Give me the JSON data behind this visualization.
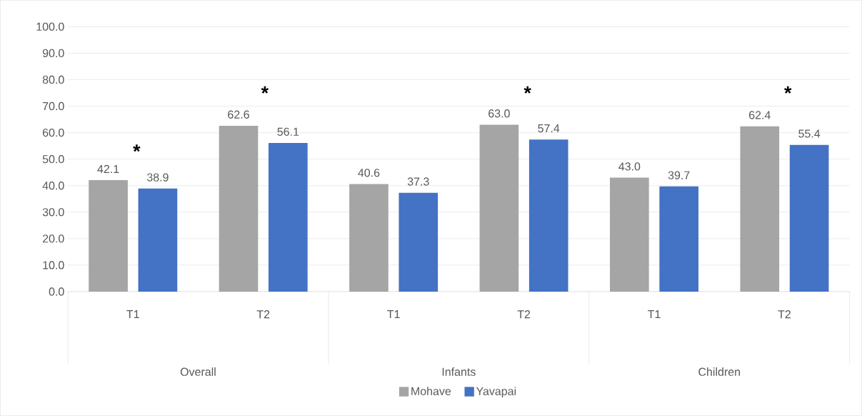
{
  "chart_data": {
    "type": "bar",
    "categories": [
      "T1",
      "T2",
      "T1",
      "T2",
      "T1",
      "T2"
    ],
    "series": [
      {
        "name": "Mohave",
        "color": "#a5a5a5",
        "values": [
          42.1,
          62.6,
          40.6,
          63.0,
          43.0,
          62.4
        ],
        "value_labels": [
          "42.1",
          "62.6",
          "40.6",
          "63.0",
          "43.0",
          "62.4"
        ]
      },
      {
        "name": "Yavapai",
        "color": "#4472c4",
        "values": [
          38.9,
          56.1,
          37.3,
          57.4,
          39.7,
          55.4
        ],
        "value_labels": [
          "38.9",
          "56.1",
          "37.3",
          "57.4",
          "39.7",
          "55.4"
        ]
      }
    ],
    "ylim": [
      0,
      100
    ],
    "yticks": [
      {
        "value": 0,
        "label": "0.0"
      },
      {
        "value": 10,
        "label": "10.0"
      },
      {
        "value": 20,
        "label": "20.0"
      },
      {
        "value": 30,
        "label": "30.0"
      },
      {
        "value": 40,
        "label": "40.0"
      },
      {
        "value": 50,
        "label": "50.0"
      },
      {
        "value": 60,
        "label": "60.0"
      },
      {
        "value": 70,
        "label": "70.0"
      },
      {
        "value": 80,
        "label": "80.0"
      },
      {
        "value": 90,
        "label": "90.0"
      },
      {
        "value": 100,
        "label": "100.0"
      }
    ],
    "grid": "y",
    "legend": "bottom",
    "annotations": [
      "Overall",
      "Infants",
      "Children",
      "*",
      "*",
      "*",
      "*"
    ]
  }
}
